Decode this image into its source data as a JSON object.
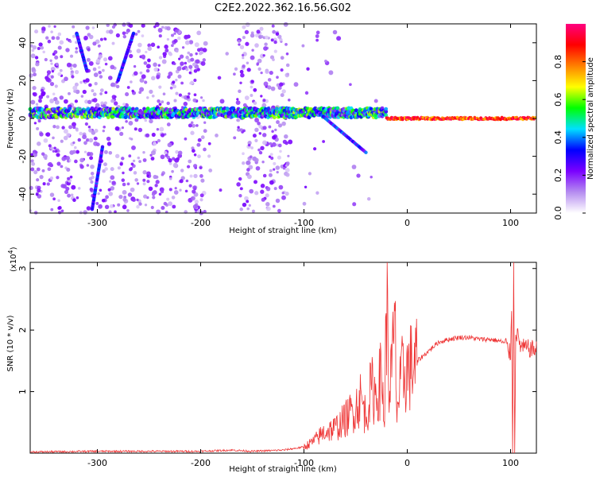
{
  "title": "C2E2.2022.362.16.56.G02",
  "chart_data": [
    {
      "type": "heatmap",
      "xlabel": "Height of straight line (km)",
      "ylabel": "Frequency (Hz)",
      "xlim": [
        -365,
        125
      ],
      "ylim": [
        -50,
        50
      ],
      "xticks": [
        "-300",
        "-200",
        "-100",
        "0",
        "100"
      ],
      "yticks": [
        "-40",
        "-20",
        "0",
        "20",
        "40"
      ],
      "colorbar": {
        "label": "Normalized spectral amplitude",
        "range": [
          0,
          1
        ],
        "ticks": [
          "0.0",
          "0.2",
          "0.4",
          "0.6",
          "0.8"
        ],
        "colormap": [
          "#ffffff",
          "#b58cf0",
          "#7a00ff",
          "#0000ff",
          "#00e0ff",
          "#00ff00",
          "#ffff00",
          "#ff8000",
          "#ff0000",
          "#ff0080"
        ]
      },
      "features": [
        {
          "kind": "band",
          "from_x": -365,
          "to_x": -20,
          "center_hz": 3,
          "amplitude": 0.25
        },
        {
          "kind": "band",
          "from_x": -20,
          "to_x": 125,
          "center_hz": 0,
          "amplitude": 0.9
        },
        {
          "kind": "streak",
          "x": [
            -320,
            -310
          ],
          "y": [
            45,
            25
          ]
        },
        {
          "kind": "streak",
          "x": [
            -280,
            -265
          ],
          "y": [
            20,
            45
          ]
        },
        {
          "kind": "streak",
          "x": [
            -305,
            -295
          ],
          "y": [
            -48,
            -15
          ]
        },
        {
          "kind": "streak",
          "x": [
            -90,
            -40
          ],
          "y": [
            5,
            -18
          ]
        }
      ]
    },
    {
      "type": "line",
      "xlabel": "Height of straight line (km)",
      "ylabel": "SNR (10 * v/v)",
      "scale_label": "(x10",
      "scale_exponent": "4",
      "scale_close": ")",
      "xlim": [
        -365,
        125
      ],
      "ylim": [
        0,
        3.1
      ],
      "xticks": [
        "-300",
        "-200",
        "-100",
        "0",
        "100"
      ],
      "yticks": [
        "1",
        "2",
        "3"
      ],
      "color": "#ee3333",
      "series": [
        {
          "x": [
            -365,
            -300,
            -250,
            -200,
            -170,
            -150,
            -120,
            -100,
            -90,
            -80,
            -70,
            -60,
            -50,
            -45,
            -40,
            -35,
            -30,
            -25,
            -22,
            -20,
            -18,
            -15,
            -12,
            -10,
            -5,
            0,
            10,
            20,
            30,
            40,
            50,
            60,
            70,
            80,
            90,
            95,
            100,
            101,
            102,
            103,
            104,
            105,
            110,
            125
          ],
          "y": [
            0.02,
            0.03,
            0.03,
            0.03,
            0.05,
            0.03,
            0.05,
            0.1,
            0.2,
            0.35,
            0.4,
            0.55,
            0.75,
            0.9,
            0.6,
            1.05,
            0.95,
            1.25,
            0.55,
            2.6,
            1.1,
            1.3,
            2.05,
            0.7,
            1.25,
            1.35,
            1.5,
            1.65,
            1.8,
            1.85,
            1.88,
            1.88,
            1.85,
            1.85,
            1.82,
            1.78,
            1.6,
            2.4,
            0.1,
            3.1,
            0.1,
            2.0,
            1.72,
            1.68
          ]
        }
      ]
    }
  ]
}
